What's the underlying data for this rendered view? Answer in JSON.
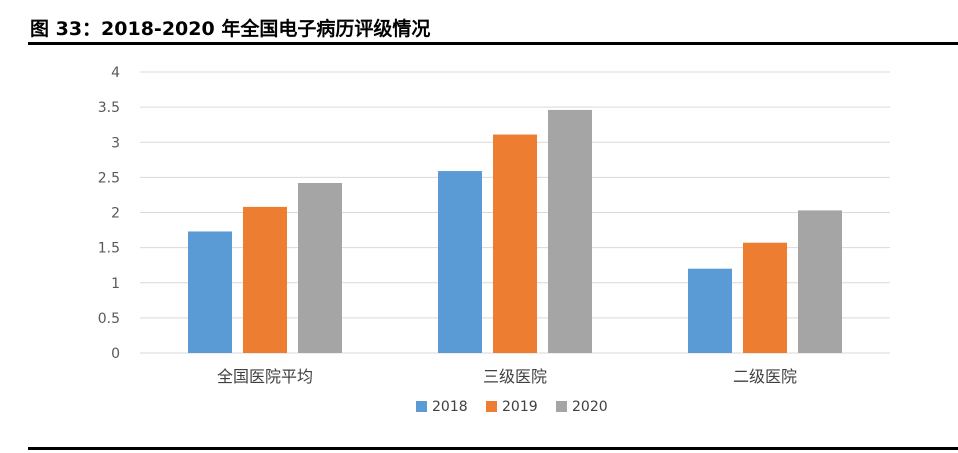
{
  "figure": {
    "label": "图 33：2018-2020 年全国电子病历评级情况"
  },
  "chart_data": {
    "type": "bar",
    "title": "",
    "xlabel": "",
    "ylabel": "",
    "categories": [
      "全国医院平均",
      "三级医院",
      "二级医院"
    ],
    "series": [
      {
        "name": "2018",
        "color": "#5B9BD5",
        "values": [
          1.73,
          2.59,
          1.2
        ]
      },
      {
        "name": "2019",
        "color": "#ED7D31",
        "values": [
          2.08,
          3.11,
          1.57
        ]
      },
      {
        "name": "2020",
        "color": "#A5A5A5",
        "values": [
          2.42,
          3.46,
          2.03
        ]
      }
    ],
    "yticks": [
      "0",
      "0.5",
      "1",
      "1.5",
      "2",
      "2.5",
      "3",
      "3.5",
      "4"
    ],
    "ylim": [
      0,
      4
    ],
    "grid": true,
    "gridline_color": "#D9D9D9",
    "legend_position": "bottom"
  }
}
